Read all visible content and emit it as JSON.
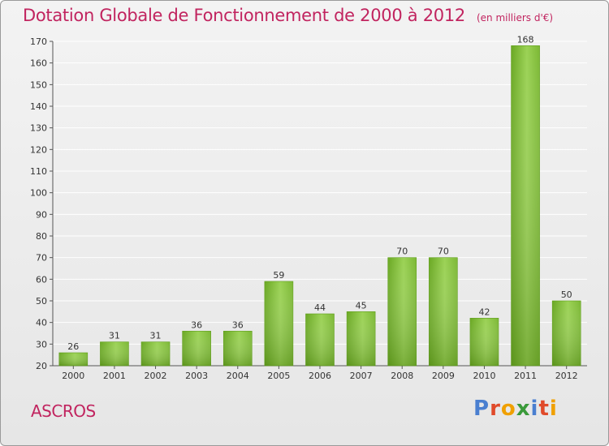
{
  "header": {
    "title": "Dotation Globale de Fonctionnement de 2000 à 2012",
    "unit_note": "(en milliers d'€)"
  },
  "footer": {
    "commune": "ASCROS",
    "brand": "Proxiti"
  },
  "colors": {
    "title": "#c1245f",
    "bar_light": "#9fd15a",
    "bar_dark": "#5f9e1a",
    "background": "#ececec",
    "grid": "#ffffff"
  },
  "brand_letter_colors": [
    "#4a7fd0",
    "#e04a2a",
    "#f0a000",
    "#3a9a3a",
    "#4a7fd0",
    "#e04a2a",
    "#f0a000"
  ],
  "chart_data": {
    "type": "bar",
    "title": "Dotation Globale de Fonctionnement de 2000 à 2012",
    "subtitle": "(en milliers d'€)",
    "xlabel": "",
    "ylabel": "",
    "categories": [
      "2000",
      "2001",
      "2002",
      "2003",
      "2004",
      "2005",
      "2006",
      "2007",
      "2008",
      "2009",
      "2010",
      "2011",
      "2012"
    ],
    "values": [
      26,
      31,
      31,
      36,
      36,
      59,
      44,
      45,
      70,
      70,
      42,
      168,
      50
    ],
    "ylim": [
      20,
      170
    ],
    "yticks": [
      20,
      30,
      40,
      50,
      60,
      70,
      80,
      90,
      100,
      110,
      120,
      130,
      140,
      150,
      160,
      170
    ],
    "grid": true,
    "data_labels": true,
    "legend": "none"
  }
}
